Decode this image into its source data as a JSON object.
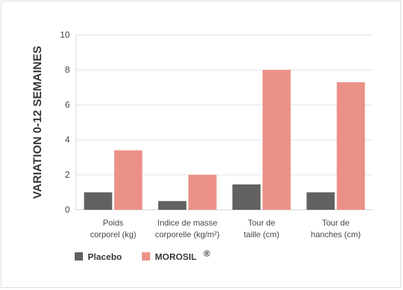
{
  "chart_data": {
    "type": "bar",
    "categories": [
      [
        "Poids",
        "corporel (kg)"
      ],
      [
        "Indice de masse",
        "corporelle (kg/m²)"
      ],
      [
        "Tour de",
        "taille (cm)"
      ],
      [
        "Tour de",
        "hanches (cm)"
      ]
    ],
    "series": [
      {
        "name": "Placebo",
        "values": [
          1.0,
          0.5,
          1.45,
          1.0
        ],
        "color": "#616161"
      },
      {
        "name": "MOROSIL",
        "name_sup": "®",
        "values": [
          3.4,
          2.0,
          8.0,
          7.3
        ],
        "color": "#ec9188"
      }
    ],
    "ylabel": "VARIATION 0-12 SEMAINES",
    "ylim": [
      0,
      10
    ],
    "yticks": [
      "0",
      "2",
      "4",
      "6",
      "8",
      "10"
    ],
    "grid": true,
    "legend_position": "bottom-left"
  }
}
